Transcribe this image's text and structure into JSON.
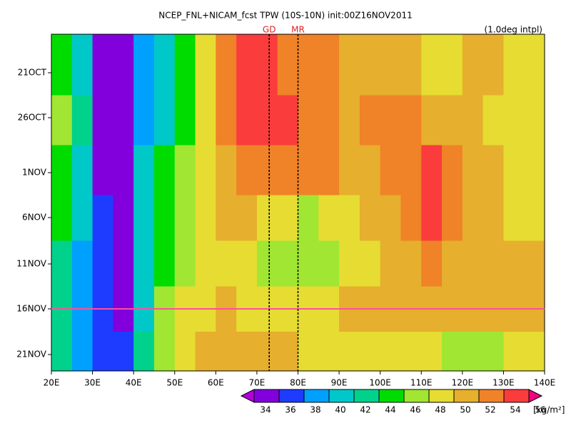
{
  "chart_data": {
    "type": "heatmap",
    "title": "NCEP_FNL+NICAM_fcst TPW (10S-10N) init:00Z16NOV2011",
    "subtitle": "(1.0deg intpl)",
    "x": [
      22.5,
      27.5,
      32.5,
      37.5,
      42.5,
      47.5,
      52.5,
      57.5,
      62.5,
      67.5,
      72.5,
      77.5,
      82.5,
      87.5,
      92.5,
      97.5,
      102.5,
      107.5,
      112.5,
      117.5,
      122.5,
      127.5,
      132.5,
      137.5
    ],
    "xlim": [
      20,
      140
    ],
    "xticks": [
      {
        "value": 20,
        "label": "20E"
      },
      {
        "value": 30,
        "label": "30E"
      },
      {
        "value": 40,
        "label": "40E"
      },
      {
        "value": 50,
        "label": "50E"
      },
      {
        "value": 60,
        "label": "60E"
      },
      {
        "value": 70,
        "label": "70E"
      },
      {
        "value": 80,
        "label": "80E"
      },
      {
        "value": 90,
        "label": "90E"
      },
      {
        "value": 100,
        "label": "100E"
      },
      {
        "value": 110,
        "label": "110E"
      },
      {
        "value": 120,
        "label": "120E"
      },
      {
        "value": 130,
        "label": "130E"
      },
      {
        "value": 140,
        "label": "140E"
      }
    ],
    "y": [
      "21OCT",
      "26OCT",
      "1NOV",
      "6NOV",
      "11NOV",
      "16NOV",
      "21NOV"
    ],
    "values": [
      [
        45,
        41,
        35,
        34,
        38,
        41,
        45,
        49,
        53,
        54,
        55,
        53,
        53,
        52,
        51,
        50,
        51,
        50,
        49,
        49,
        50,
        50,
        49,
        49
      ],
      [
        46,
        42,
        35,
        34,
        38,
        41,
        44,
        48,
        52,
        54,
        55,
        55,
        53,
        52,
        51,
        52,
        53,
        52,
        50,
        50,
        50,
        49,
        49,
        48
      ],
      [
        44,
        40,
        35,
        34,
        40,
        44,
        47,
        49,
        51,
        52,
        53,
        53,
        52,
        52,
        51,
        51,
        52,
        53,
        54,
        52,
        51,
        50,
        49,
        49
      ],
      [
        44,
        40,
        36,
        35,
        40,
        45,
        47,
        48,
        50,
        51,
        49,
        48,
        47,
        48,
        49,
        50,
        51,
        53,
        55,
        53,
        51,
        50,
        49,
        49
      ],
      [
        42,
        39,
        36,
        35,
        40,
        45,
        47,
        48,
        49,
        48,
        47,
        46,
        46,
        47,
        48,
        49,
        50,
        51,
        52,
        51,
        50,
        50,
        50,
        50
      ],
      [
        42,
        38,
        36,
        35,
        40,
        46,
        48,
        49,
        50,
        48,
        48,
        48,
        49,
        49,
        50,
        50,
        50,
        50,
        50,
        50,
        51,
        51,
        50,
        50
      ],
      [
        42,
        38,
        36,
        36,
        42,
        47,
        49,
        50,
        51,
        51,
        50,
        50,
        49,
        49,
        48,
        48,
        48,
        49,
        49,
        47,
        46,
        47,
        48,
        49
      ]
    ],
    "markers": [
      {
        "label": "GD",
        "x": 73
      },
      {
        "label": "MR",
        "x": 80
      }
    ],
    "colorbar": {
      "levels": [
        34,
        36,
        38,
        40,
        42,
        44,
        46,
        48,
        50,
        52,
        54,
        56
      ],
      "colors": [
        "#b400dc",
        "#8200dc",
        "#1e3cff",
        "#00a0ff",
        "#00c8c8",
        "#00d28c",
        "#00dc00",
        "#a0e632",
        "#e6dc32",
        "#e6af2d",
        "#f08228",
        "#fa3c3c",
        "#f00082"
      ],
      "unit": "[kg/m²]"
    }
  }
}
